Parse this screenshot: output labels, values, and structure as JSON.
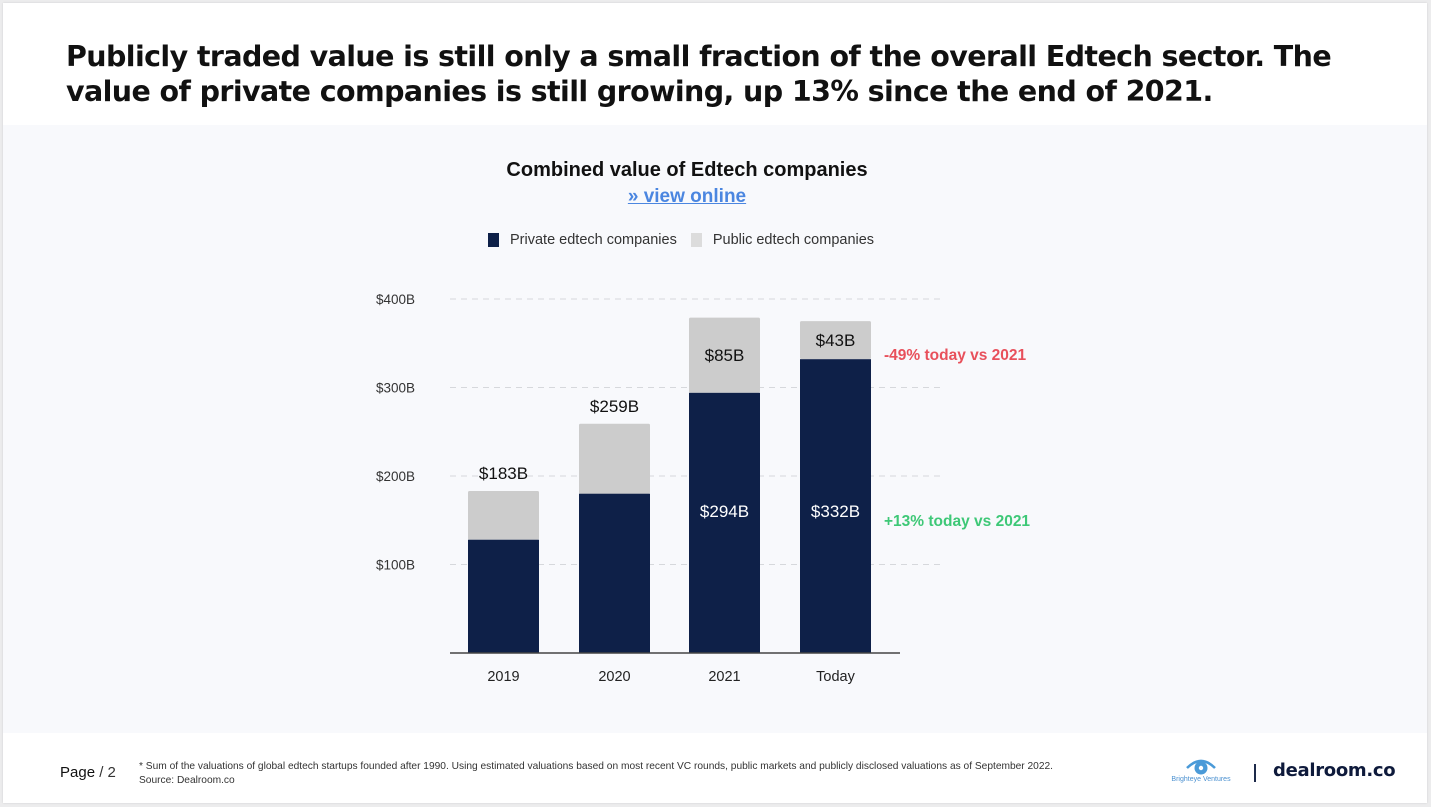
{
  "headline": "Publicly traded value is still only a small fraction of the overall Edtech sector. The value of private companies is still growing, up 13% since the end of 2021.",
  "link_label": "» view online",
  "colors": {
    "private": "#0e2048",
    "public": "#cccccc",
    "negative": "#e8505b",
    "positive": "#3ec877",
    "link": "#4b86e0"
  },
  "chart_data": {
    "type": "bar",
    "stacked": true,
    "title": "Combined value of Edtech companies",
    "categories": [
      "2019",
      "2020",
      "2021",
      "Today"
    ],
    "series": [
      {
        "name": "Private edtech companies",
        "values": [
          128,
          180,
          294,
          332
        ]
      },
      {
        "name": "Public edtech companies",
        "values": [
          55,
          79,
          85,
          43
        ]
      }
    ],
    "y_ticks": [
      {
        "value": 100,
        "label": "$100B"
      },
      {
        "value": 200,
        "label": "$200B"
      },
      {
        "value": 300,
        "label": "$300B"
      },
      {
        "value": 400,
        "label": "$400B"
      }
    ],
    "ylim": [
      0,
      400
    ],
    "grid": true,
    "legend": "top",
    "data_labels": [
      {
        "category": "2019",
        "position": "total",
        "text": "$183B"
      },
      {
        "category": "2020",
        "position": "total",
        "text": "$259B"
      },
      {
        "category": "2021",
        "position": "public",
        "text": "$85B"
      },
      {
        "category": "2021",
        "position": "private",
        "text": "$294B"
      },
      {
        "category": "Today",
        "position": "public",
        "text": "$43B"
      },
      {
        "category": "Today",
        "position": "private",
        "text": "$332B"
      }
    ],
    "annotations": [
      {
        "text": "-49% today vs 2021",
        "series": "public",
        "tone": "negative"
      },
      {
        "text": "+13% today vs 2021",
        "series": "private",
        "tone": "positive"
      }
    ]
  },
  "footer": {
    "page_label": "Page",
    "page_number": "/ 2",
    "footnote": "* Sum of the valuations of global edtech startups founded after 1990. Using estimated valuations based on most recent VC rounds, public markets and publicly disclosed valuations as of September 2022.",
    "source": "Source: Dealroom.co",
    "partner_logo": "Brighteye Ventures",
    "brand_logo": "dealroom.co"
  }
}
